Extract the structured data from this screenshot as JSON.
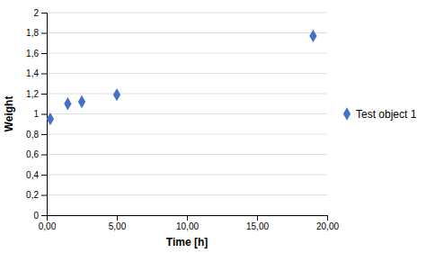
{
  "chart_data": {
    "type": "scatter",
    "xlabel": "Time [h]",
    "ylabel": "Weight",
    "x": [
      0.25,
      1.5,
      2.5,
      5.0,
      19.0
    ],
    "series": [
      {
        "name": "Test object 1",
        "color": "#4472C4",
        "marker": "diamond",
        "values": [
          0.95,
          1.1,
          1.12,
          1.19,
          1.77
        ]
      }
    ],
    "xlim": [
      0,
      20
    ],
    "xticks": [
      {
        "value": 0,
        "label": "0,00"
      },
      {
        "value": 5,
        "label": "5,00"
      },
      {
        "value": 10,
        "label": "10,00"
      },
      {
        "value": 15,
        "label": "15,00"
      },
      {
        "value": 20,
        "label": "20,00"
      }
    ],
    "ylim": [
      0,
      2
    ],
    "yticks": [
      0,
      {
        "value": 0.2,
        "label": "0,2"
      },
      {
        "value": 0.4,
        "label": "0,4"
      },
      {
        "value": 0.6,
        "label": "0,6"
      },
      {
        "value": 0.8,
        "label": "0,8"
      },
      1,
      {
        "value": 1.2,
        "label": "1,2"
      },
      {
        "value": 1.4,
        "label": "1,4"
      },
      {
        "value": 1.6,
        "label": "1,6"
      },
      {
        "value": 1.8,
        "label": "1,8"
      },
      2
    ],
    "grid": "y",
    "legend": "right"
  }
}
